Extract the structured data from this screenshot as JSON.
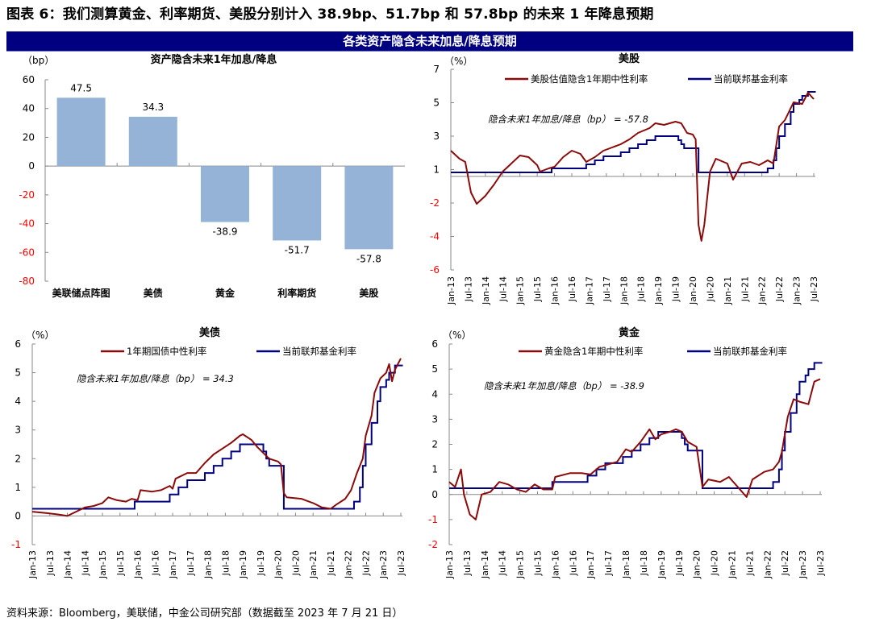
{
  "header": {
    "title": "图表 6：我们测算黄金、利率期货、美股分别计入 38.9bp、51.7bp 和 57.8bp 的未来 1 年降息预期",
    "band": "各类资产隐含未来加息/降息预期"
  },
  "footer": {
    "source": "资料来源：Bloomberg，美联储，中金公司研究部（数据截至 2023 年 7 月 21 日）"
  },
  "colors": {
    "bar": "#95b3d7",
    "neutral_line": "#8b0a0a",
    "fed_line": "#000080",
    "negative_tick": "#ff0000",
    "band": "#000080"
  },
  "chart_data": [
    {
      "type": "bar",
      "title": "资产隐含未来1年加息/降息",
      "unit": "（bp）",
      "categories": [
        "美联储点阵图",
        "美债",
        "黄金",
        "利率期货",
        "美股"
      ],
      "values": [
        47.5,
        34.3,
        -38.9,
        -51.7,
        -57.8
      ],
      "value_labels": [
        "47.5",
        "34.3",
        "-38.9",
        "-51.7",
        "-57.8"
      ],
      "ylim": [
        -80,
        60
      ],
      "yticks": [
        "60",
        "40",
        "20",
        "0",
        "-20",
        "-40",
        "-60",
        "-80"
      ],
      "grid": false
    },
    {
      "type": "line",
      "title": "美股",
      "unit": "（%）",
      "annotation": "隐含未来1年加息/降息（bp） = -57.8",
      "ylim": [
        -5.8,
        6.65
      ],
      "yticks": [
        "7",
        "5",
        "3",
        "1",
        "-2",
        "-4",
        "-6"
      ],
      "xticks": [
        "Jan-13",
        "Jul-13",
        "Jan-14",
        "Jul-14",
        "Jan-15",
        "Jul-15",
        "Jan-16",
        "Jul-16",
        "Jan-17",
        "Jul-17",
        "Jan-18",
        "Jul-18",
        "Jan-19",
        "Jul-19",
        "Jan-20",
        "Jul-20",
        "Jan-21",
        "Jul-21",
        "Jan-22",
        "Jul-22",
        "Jan-23",
        "Jul-23"
      ],
      "legend": [
        "美股估值隐含1年期中性利率",
        "当前联邦基金利率"
      ],
      "legend_placement": "top",
      "grid": false,
      "series": [
        {
          "name": "美股估值隐含1年期中性利率",
          "points": [
            [
              "2013-01",
              1.6
            ],
            [
              "2013-04",
              1.1
            ],
            [
              "2013-06",
              0.9
            ],
            [
              "2013-08",
              -1.0
            ],
            [
              "2013-10",
              -1.7
            ],
            [
              "2014-01",
              -1.2
            ],
            [
              "2014-04",
              -0.5
            ],
            [
              "2014-07",
              0.3
            ],
            [
              "2014-10",
              0.8
            ],
            [
              "2015-01",
              1.3
            ],
            [
              "2015-04",
              1.2
            ],
            [
              "2015-07",
              0.7
            ],
            [
              "2015-08",
              0.3
            ],
            [
              "2015-11",
              0.5
            ],
            [
              "2016-01",
              0.6
            ],
            [
              "2016-04",
              1.2
            ],
            [
              "2016-07",
              1.6
            ],
            [
              "2016-10",
              1.4
            ],
            [
              "2016-12",
              0.9
            ],
            [
              "2017-03",
              1.2
            ],
            [
              "2017-06",
              1.6
            ],
            [
              "2017-09",
              1.8
            ],
            [
              "2017-12",
              2.0
            ],
            [
              "2018-03",
              2.3
            ],
            [
              "2018-06",
              2.7
            ],
            [
              "2018-10",
              3.0
            ],
            [
              "2018-12",
              3.3
            ],
            [
              "2019-03",
              3.2
            ],
            [
              "2019-07",
              3.4
            ],
            [
              "2019-09",
              3.3
            ],
            [
              "2019-11",
              2.7
            ],
            [
              "2020-01",
              2.6
            ],
            [
              "2020-02",
              2.3
            ],
            [
              "2020-03",
              -3.0
            ],
            [
              "2020-04",
              -4.0
            ],
            [
              "2020-05",
              -3.0
            ],
            [
              "2020-07",
              0.3
            ],
            [
              "2020-09",
              1.1
            ],
            [
              "2021-01",
              0.8
            ],
            [
              "2021-03",
              -0.2
            ],
            [
              "2021-06",
              0.8
            ],
            [
              "2021-09",
              0.9
            ],
            [
              "2021-12",
              0.7
            ],
            [
              "2022-03",
              1.0
            ],
            [
              "2022-05",
              0.8
            ],
            [
              "2022-07",
              3.1
            ],
            [
              "2022-09",
              3.5
            ],
            [
              "2022-12",
              4.6
            ],
            [
              "2023-03",
              4.5
            ],
            [
              "2023-05",
              5.2
            ],
            [
              "2023-07",
              4.8
            ]
          ]
        },
        {
          "name": "当前联邦基金利率",
          "step": true,
          "ref": "fed_funds"
        }
      ]
    },
    {
      "type": "line",
      "title": "美债",
      "unit": "（%）",
      "annotation": "隐含未来1年加息/降息（bp） = 34.3",
      "ylim": [
        -1,
        6
      ],
      "yticks": [
        "6",
        "5",
        "4",
        "3",
        "2",
        "1",
        "0",
        "-1"
      ],
      "xticks": [
        "Jan-13",
        "Jul-13",
        "Jan-14",
        "Jul-14",
        "Jan-15",
        "Jul-15",
        "Jan-16",
        "Jul-16",
        "Jan-17",
        "Jul-17",
        "Jan-18",
        "Jul-18",
        "Jan-19",
        "Jul-19",
        "Jan-20",
        "Jul-20",
        "Jan-21",
        "Jul-21",
        "Jan-22",
        "Jul-22",
        "Jan-23",
        "Jul-23"
      ],
      "legend": [
        "1年期国债中性利率",
        "当前联邦基金利率"
      ],
      "legend_placement": "top",
      "grid": false,
      "series": [
        {
          "name": "1年期国债中性利率",
          "points": [
            [
              "2013-01",
              0.15
            ],
            [
              "2013-06",
              0.1
            ],
            [
              "2013-10",
              0.05
            ],
            [
              "2014-01",
              0.0
            ],
            [
              "2014-04",
              0.15
            ],
            [
              "2014-07",
              0.3
            ],
            [
              "2014-10",
              0.35
            ],
            [
              "2015-01",
              0.45
            ],
            [
              "2015-03",
              0.65
            ],
            [
              "2015-06",
              0.55
            ],
            [
              "2015-09",
              0.5
            ],
            [
              "2015-11",
              0.6
            ],
            [
              "2016-01",
              0.55
            ],
            [
              "2016-02",
              0.9
            ],
            [
              "2016-06",
              0.85
            ],
            [
              "2016-09",
              0.9
            ],
            [
              "2016-12",
              1.05
            ],
            [
              "2017-01",
              0.95
            ],
            [
              "2017-02",
              1.3
            ],
            [
              "2017-06",
              1.5
            ],
            [
              "2017-09",
              1.5
            ],
            [
              "2017-12",
              1.85
            ],
            [
              "2018-03",
              2.15
            ],
            [
              "2018-06",
              2.35
            ],
            [
              "2018-09",
              2.55
            ],
            [
              "2018-12",
              2.8
            ],
            [
              "2019-01",
              2.85
            ],
            [
              "2019-04",
              2.65
            ],
            [
              "2019-06",
              2.4
            ],
            [
              "2019-08",
              2.2
            ],
            [
              "2019-10",
              2.0
            ],
            [
              "2020-01",
              1.9
            ],
            [
              "2020-02",
              1.8
            ],
            [
              "2020-03",
              0.8
            ],
            [
              "2020-04",
              0.65
            ],
            [
              "2020-09",
              0.6
            ],
            [
              "2021-01",
              0.45
            ],
            [
              "2021-04",
              0.3
            ],
            [
              "2021-07",
              0.25
            ],
            [
              "2021-09",
              0.4
            ],
            [
              "2021-12",
              0.6
            ],
            [
              "2022-02",
              0.9
            ],
            [
              "2022-04",
              1.5
            ],
            [
              "2022-06",
              2.0
            ],
            [
              "2022-07",
              2.8
            ],
            [
              "2022-09",
              3.5
            ],
            [
              "2022-10",
              4.3
            ],
            [
              "2022-12",
              4.8
            ],
            [
              "2023-02",
              5.0
            ],
            [
              "2023-03",
              5.3
            ],
            [
              "2023-04",
              4.7
            ],
            [
              "2023-05",
              5.1
            ],
            [
              "2023-07",
              5.5
            ]
          ]
        },
        {
          "name": "当前联邦基金利率",
          "step": true,
          "ref": "fed_funds"
        }
      ]
    },
    {
      "type": "line",
      "title": "黄金",
      "unit": "（%）",
      "annotation": "隐含未来1年加息/降息（bp） = -38.9",
      "ylim": [
        -2,
        6
      ],
      "yticks": [
        "6",
        "5",
        "4",
        "3",
        "2",
        "1",
        "0",
        "-1",
        "-2"
      ],
      "xticks": [
        "Jan-13",
        "Jul-13",
        "Jan-14",
        "Jul-14",
        "Jan-15",
        "Jul-15",
        "Jan-16",
        "Jul-16",
        "Jan-17",
        "Jul-17",
        "Jan-18",
        "Jul-18",
        "Jan-19",
        "Jul-19",
        "Jan-20",
        "Jul-20",
        "Jan-21",
        "Jul-21",
        "Jan-22",
        "Jul-22",
        "Jan-23",
        "Jul-23"
      ],
      "legend": [
        "黄金隐含1年期中性利率",
        "当前联邦基金利率"
      ],
      "legend_placement": "top",
      "grid": false,
      "series": [
        {
          "name": "黄金隐含1年期中性利率",
          "points": [
            [
              "2013-01",
              0.5
            ],
            [
              "2013-03",
              0.3
            ],
            [
              "2013-05",
              1.0
            ],
            [
              "2013-06",
              0.0
            ],
            [
              "2013-08",
              -0.8
            ],
            [
              "2013-10",
              -1.0
            ],
            [
              "2013-12",
              0.0
            ],
            [
              "2014-03",
              0.1
            ],
            [
              "2014-06",
              0.5
            ],
            [
              "2014-09",
              0.4
            ],
            [
              "2014-12",
              0.2
            ],
            [
              "2015-03",
              0.1
            ],
            [
              "2015-06",
              0.4
            ],
            [
              "2015-09",
              0.2
            ],
            [
              "2015-12",
              0.2
            ],
            [
              "2016-01",
              0.7
            ],
            [
              "2016-06",
              0.85
            ],
            [
              "2016-10",
              0.85
            ],
            [
              "2017-01",
              0.8
            ],
            [
              "2017-04",
              1.1
            ],
            [
              "2017-07",
              1.2
            ],
            [
              "2017-10",
              1.3
            ],
            [
              "2018-01",
              1.8
            ],
            [
              "2018-03",
              1.7
            ],
            [
              "2018-06",
              2.1
            ],
            [
              "2018-09",
              2.6
            ],
            [
              "2018-11",
              2.2
            ],
            [
              "2019-01",
              2.4
            ],
            [
              "2019-04",
              2.5
            ],
            [
              "2019-06",
              2.6
            ],
            [
              "2019-08",
              2.5
            ],
            [
              "2019-10",
              2.1
            ],
            [
              "2020-01",
              1.9
            ],
            [
              "2020-03",
              0.3
            ],
            [
              "2020-05",
              0.6
            ],
            [
              "2020-09",
              0.5
            ],
            [
              "2020-12",
              0.7
            ],
            [
              "2021-03",
              0.3
            ],
            [
              "2021-06",
              -0.1
            ],
            [
              "2021-08",
              0.6
            ],
            [
              "2021-12",
              0.9
            ],
            [
              "2022-03",
              1.0
            ],
            [
              "2022-05",
              1.3
            ],
            [
              "2022-06",
              1.7
            ],
            [
              "2022-08",
              3.1
            ],
            [
              "2022-10",
              3.8
            ],
            [
              "2022-12",
              3.7
            ],
            [
              "2023-03",
              3.6
            ],
            [
              "2023-05",
              4.5
            ],
            [
              "2023-07",
              4.6
            ]
          ]
        },
        {
          "name": "当前联邦基金利率",
          "step": true,
          "ref": "fed_funds"
        }
      ]
    }
  ],
  "fed_funds": [
    [
      "2013-01",
      0.25
    ],
    [
      "2015-12",
      0.5
    ],
    [
      "2016-12",
      0.75
    ],
    [
      "2017-03",
      1.0
    ],
    [
      "2017-06",
      1.25
    ],
    [
      "2017-12",
      1.5
    ],
    [
      "2018-03",
      1.75
    ],
    [
      "2018-06",
      2.0
    ],
    [
      "2018-09",
      2.25
    ],
    [
      "2018-12",
      2.5
    ],
    [
      "2019-08",
      2.25
    ],
    [
      "2019-09",
      2.0
    ],
    [
      "2019-10",
      1.75
    ],
    [
      "2020-03",
      0.25
    ],
    [
      "2022-03",
      0.5
    ],
    [
      "2022-05",
      1.0
    ],
    [
      "2022-06",
      1.75
    ],
    [
      "2022-07",
      2.5
    ],
    [
      "2022-09",
      3.25
    ],
    [
      "2022-11",
      4.0
    ],
    [
      "2022-12",
      4.5
    ],
    [
      "2023-02",
      4.75
    ],
    [
      "2023-03",
      5.0
    ],
    [
      "2023-05",
      5.25
    ],
    [
      "2023-07",
      5.25
    ]
  ]
}
